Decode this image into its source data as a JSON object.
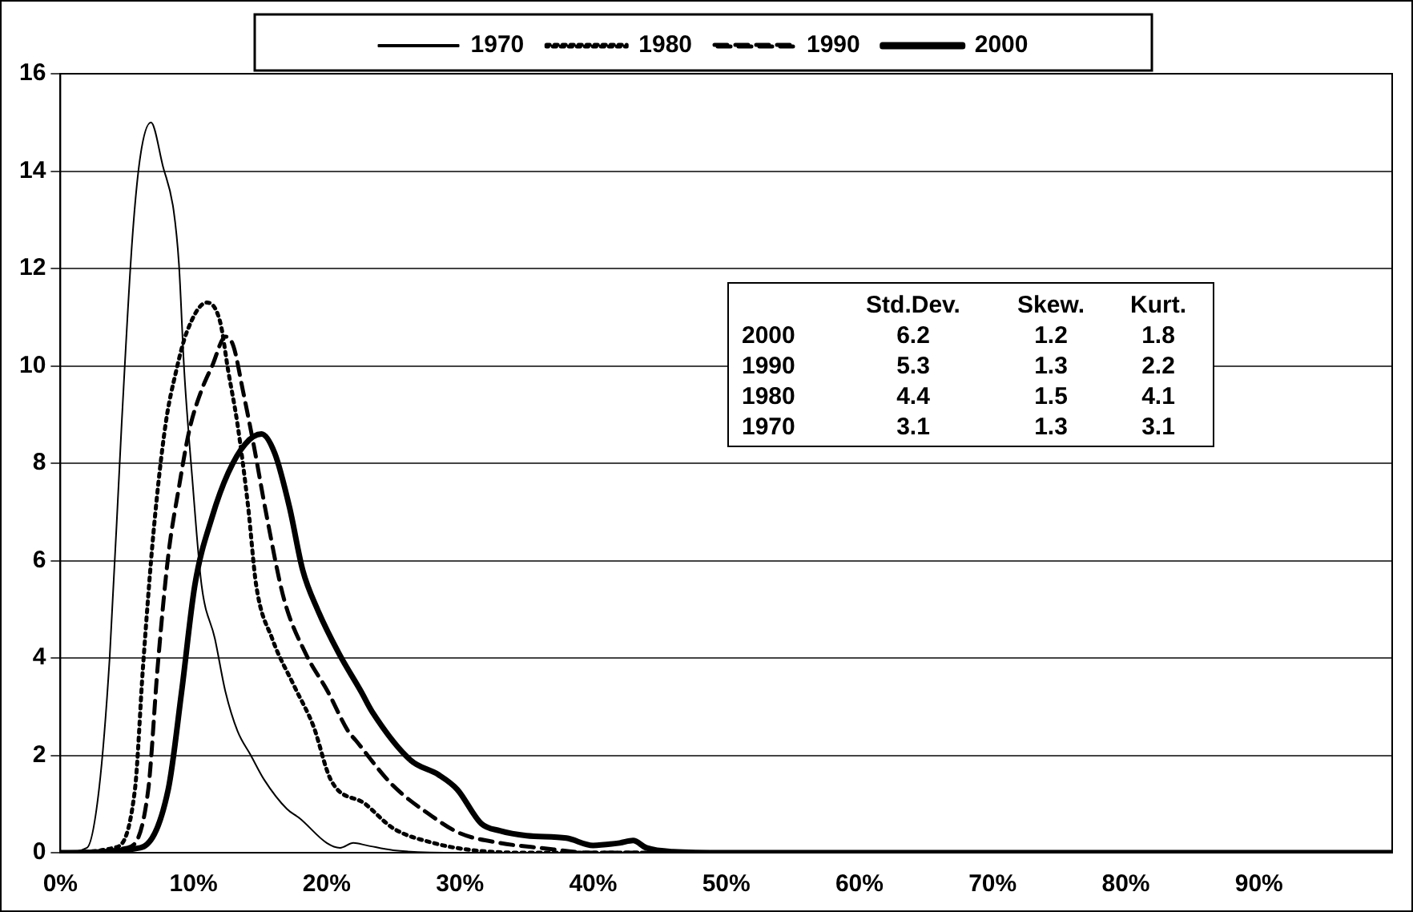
{
  "chart_data": {
    "type": "line",
    "legend": "top",
    "grid": "y",
    "marker": "none",
    "xlim": [
      0,
      100
    ],
    "ylim": [
      0,
      16
    ],
    "xticks": [
      {
        "value": 0,
        "label": "0%"
      },
      {
        "value": 10,
        "label": "10%"
      },
      {
        "value": 20,
        "label": "20%"
      },
      {
        "value": 30,
        "label": "30%"
      },
      {
        "value": 40,
        "label": "40%"
      },
      {
        "value": 50,
        "label": "50%"
      },
      {
        "value": 60,
        "label": "60%"
      },
      {
        "value": 70,
        "label": "70%"
      },
      {
        "value": 80,
        "label": "80%"
      },
      {
        "value": 90,
        "label": "90%"
      }
    ],
    "yticks": [
      0,
      2,
      4,
      6,
      8,
      10,
      12,
      14,
      16
    ],
    "annotations": [
      "\tStd.Dev.\tSkew.\tKurt.",
      "2000\t6.2\t1.2\t1.8",
      "1990\t5.3\t1.3\t2.2",
      "1980\t4.4\t1.5\t4.1",
      "1970\t3.1\t1.3\t3.1"
    ],
    "series": [
      {
        "name": "1970",
        "color": "#000000",
        "line_style": "solid",
        "x": [
          0,
          2,
          2.9,
          3.7,
          4.6,
          5.4,
          6.0,
          6.8,
          7.7,
          8.5,
          8.9,
          9.3,
          9.9,
          10.6,
          11.6,
          12.4,
          13.3,
          14.3,
          15.3,
          17,
          18,
          20,
          21,
          22,
          23,
          25,
          30,
          100
        ],
        "values": [
          0,
          0.1,
          1.3,
          4.0,
          8.8,
          12.6,
          14.3,
          15.0,
          14.1,
          13.2,
          12.1,
          9.9,
          7.7,
          5.5,
          4.4,
          3.3,
          2.5,
          2.0,
          1.5,
          0.9,
          0.7,
          0.2,
          0.1,
          0.2,
          0.15,
          0.05,
          0,
          0
        ]
      },
      {
        "name": "1980",
        "color": "#000000",
        "line_style": "dotted",
        "x": [
          0,
          4,
          5.6,
          6.2,
          7.0,
          7.9,
          8.7,
          9.5,
          11.0,
          12.0,
          12.6,
          13.3,
          14.1,
          14.7,
          15.9,
          17.6,
          19.0,
          20.3,
          22.9,
          25,
          28,
          31,
          35,
          100
        ],
        "values": [
          0,
          0.1,
          1.3,
          3.8,
          6.6,
          8.8,
          9.9,
          10.7,
          11.3,
          10.9,
          9.9,
          8.8,
          7.1,
          5.5,
          4.4,
          3.4,
          2.6,
          1.5,
          1.0,
          0.5,
          0.2,
          0.05,
          0,
          0
        ]
      },
      {
        "name": "1990",
        "color": "#000000",
        "line_style": "dashed",
        "x": [
          0,
          5,
          6.6,
          7.3,
          8.1,
          8.9,
          9.7,
          10.6,
          11.4,
          12.4,
          13.0,
          13.7,
          14.5,
          15.5,
          16.8,
          18.4,
          20.1,
          21.6,
          22.2,
          24.9,
          27.9,
          30,
          33,
          36,
          40,
          100
        ],
        "values": [
          0,
          0.1,
          1.3,
          3.8,
          6.1,
          7.5,
          8.7,
          9.5,
          10.0,
          10.6,
          10.4,
          9.5,
          8.4,
          6.9,
          5.2,
          4.1,
          3.3,
          2.5,
          2.3,
          1.4,
          0.75,
          0.4,
          0.2,
          0.1,
          0,
          0
        ]
      },
      {
        "name": "2000",
        "color": "#000000",
        "line_style": "solid",
        "x": [
          0,
          6,
          8.1,
          9.1,
          10.1,
          11.4,
          12.6,
          13.9,
          15.1,
          16.1,
          17.2,
          18.2,
          19.3,
          20.9,
          22.6,
          23.4,
          26.3,
          28.4,
          29.8,
          31.6,
          33,
          35,
          38,
          40,
          42,
          43,
          44,
          46,
          50,
          100
        ],
        "values": [
          0,
          0.1,
          1.3,
          3.3,
          5.5,
          6.9,
          7.8,
          8.4,
          8.6,
          8.2,
          7.1,
          5.8,
          5.0,
          4.1,
          3.3,
          2.9,
          1.9,
          1.6,
          1.3,
          0.6,
          0.45,
          0.35,
          0.3,
          0.15,
          0.2,
          0.25,
          0.1,
          0.02,
          0,
          0
        ]
      }
    ]
  }
}
